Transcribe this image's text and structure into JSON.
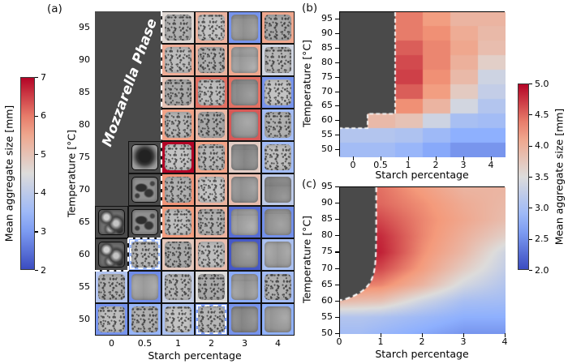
{
  "figure_background": "#ffffff",
  "phase_gray": "#4a4a4a",
  "colorbar_left": {
    "label": "Mean aggregate size [mm]",
    "min": 2,
    "max": 7,
    "ticks": [
      "7",
      "6",
      "5",
      "4",
      "3",
      "2"
    ]
  },
  "colorbar_right": {
    "label": "Mean aggregate size [mm]",
    "min": 2,
    "max": 5,
    "ticks": [
      "5.0",
      "4.5",
      "4.0",
      "3.5",
      "3.0",
      "2.5",
      "2.0"
    ]
  },
  "chart_data": [
    {
      "id": "a",
      "type": "heatmap",
      "subtype": "image-grid-with-colored-borders",
      "panel_label": "(a)",
      "xlabel": "Starch percentage",
      "ylabel": "Temperature [°C]",
      "x_categories": [
        "0",
        "0.5",
        "1",
        "2",
        "3",
        "4"
      ],
      "y_categories": [
        "95",
        "90",
        "85",
        "80",
        "75",
        "70",
        "65",
        "60",
        "55",
        "50"
      ],
      "phase_label": "Mozzarella Phase",
      "legend_note": "border color encodes mean aggregate size [mm], scale 2-7; M = mozzarella-phase sample image (black border); null = mozzarella phase (no sample)",
      "values": [
        [
          null,
          null,
          4.6,
          5.3,
          2.9,
          5.5
        ],
        [
          null,
          null,
          5.4,
          5.3,
          5.5,
          4.3
        ],
        [
          null,
          null,
          5.0,
          6.1,
          6.1,
          2.9
        ],
        [
          null,
          null,
          5.6,
          5.2,
          6.3,
          3.6
        ],
        [
          null,
          "M",
          7.0,
          5.6,
          4.8,
          3.55
        ],
        [
          null,
          "M",
          5.8,
          5.3,
          5.1,
          4.0
        ],
        [
          "M",
          "M",
          5.7,
          5.3,
          2.4,
          2.85
        ],
        [
          "M",
          3.4,
          4.9,
          5.1,
          2.15,
          3.7
        ],
        [
          3.8,
          2.8,
          4.1,
          4.5,
          3.2,
          3.6
        ],
        [
          2.9,
          3.4,
          3.7,
          3.0,
          2.9,
          3.3
        ]
      ],
      "dashed_cells": [
        [
          7,
          1
        ],
        [
          9,
          3
        ]
      ],
      "moz_texture": {
        "4,1": "mozBlob",
        "5,1": "mozPatch",
        "6,0": "mozSwirl",
        "6,1": "mozPatch",
        "7,0": "mozSwirl"
      },
      "smooth_cells": [
        [
          0,
          4
        ],
        [
          1,
          4
        ],
        [
          2,
          4
        ],
        [
          3,
          4
        ],
        [
          4,
          4
        ],
        [
          5,
          4
        ],
        [
          6,
          4
        ],
        [
          7,
          4
        ],
        [
          8,
          4
        ],
        [
          9,
          4
        ],
        [
          5,
          5
        ],
        [
          6,
          5
        ],
        [
          7,
          5
        ],
        [
          9,
          5
        ],
        [
          8,
          1
        ]
      ]
    },
    {
      "id": "b",
      "type": "heatmap",
      "subtype": "discrete",
      "panel_label": "(b)",
      "xlabel": "Starch percentage",
      "ylabel": "Temperature [°C]",
      "x_categories": [
        "0",
        "0.5",
        "1",
        "2",
        "3",
        "4"
      ],
      "y_categories": [
        "95",
        "90",
        "85",
        "80",
        "75",
        "70",
        "65",
        "60",
        "55",
        "50"
      ],
      "legend_note": "cell value = mean aggregate size [mm], scale 2-5; null = mozzarella phase (gray)",
      "values": [
        [
          null,
          null,
          4.4,
          4.2,
          3.95,
          3.95
        ],
        [
          null,
          null,
          4.4,
          4.3,
          4.05,
          3.9
        ],
        [
          null,
          null,
          4.55,
          4.35,
          4.1,
          3.85
        ],
        [
          null,
          null,
          4.65,
          4.35,
          4.0,
          3.65
        ],
        [
          null,
          null,
          4.7,
          4.3,
          3.9,
          3.35
        ],
        [
          null,
          null,
          4.55,
          4.2,
          3.7,
          3.25
        ],
        [
          null,
          null,
          4.3,
          3.95,
          3.4,
          3.1
        ],
        [
          null,
          3.9,
          3.8,
          3.35,
          3.0,
          2.95
        ],
        [
          3.1,
          3.1,
          3.05,
          2.9,
          2.75,
          2.75
        ],
        [
          2.95,
          2.95,
          2.85,
          2.7,
          2.55,
          2.55
        ]
      ]
    },
    {
      "id": "c",
      "type": "heatmap",
      "subtype": "interpolated-continuous",
      "panel_label": "(c)",
      "xlabel": "Starch percentage",
      "ylabel": "Temperature [°C]",
      "x_ticks": [
        "0",
        "1",
        "2",
        "3",
        "4"
      ],
      "y_ticks": [
        "95",
        "90",
        "85",
        "80",
        "75",
        "70",
        "65",
        "60",
        "55",
        "50"
      ],
      "x_range": [
        0,
        4
      ],
      "y_range": [
        50,
        95
      ],
      "starch_nodes": [
        0,
        0.5,
        1,
        2,
        3,
        4
      ],
      "temp_nodes": [
        95,
        90,
        85,
        80,
        75,
        70,
        65,
        60,
        55,
        50
      ],
      "legend_note": "smooth interpolation of mean aggregate size [mm], scale 2-5; masked gray = mozzarella phase",
      "values": [
        [
          4.5,
          4.5,
          4.45,
          4.2,
          3.95,
          3.95
        ],
        [
          4.5,
          4.5,
          4.5,
          4.3,
          4.05,
          3.9
        ],
        [
          4.7,
          4.7,
          4.65,
          4.35,
          4.1,
          3.85
        ],
        [
          4.85,
          4.85,
          4.8,
          4.35,
          4.0,
          3.65
        ],
        [
          4.9,
          4.9,
          4.85,
          4.3,
          3.9,
          3.35
        ],
        [
          4.7,
          4.7,
          4.65,
          4.2,
          3.7,
          3.25
        ],
        [
          4.4,
          4.4,
          4.35,
          3.95,
          3.4,
          3.1
        ],
        [
          3.9,
          3.85,
          3.8,
          3.35,
          3.0,
          2.95
        ],
        [
          3.1,
          3.1,
          3.05,
          2.9,
          2.75,
          2.75
        ],
        [
          2.95,
          2.95,
          2.85,
          2.7,
          2.55,
          2.55
        ]
      ]
    }
  ]
}
